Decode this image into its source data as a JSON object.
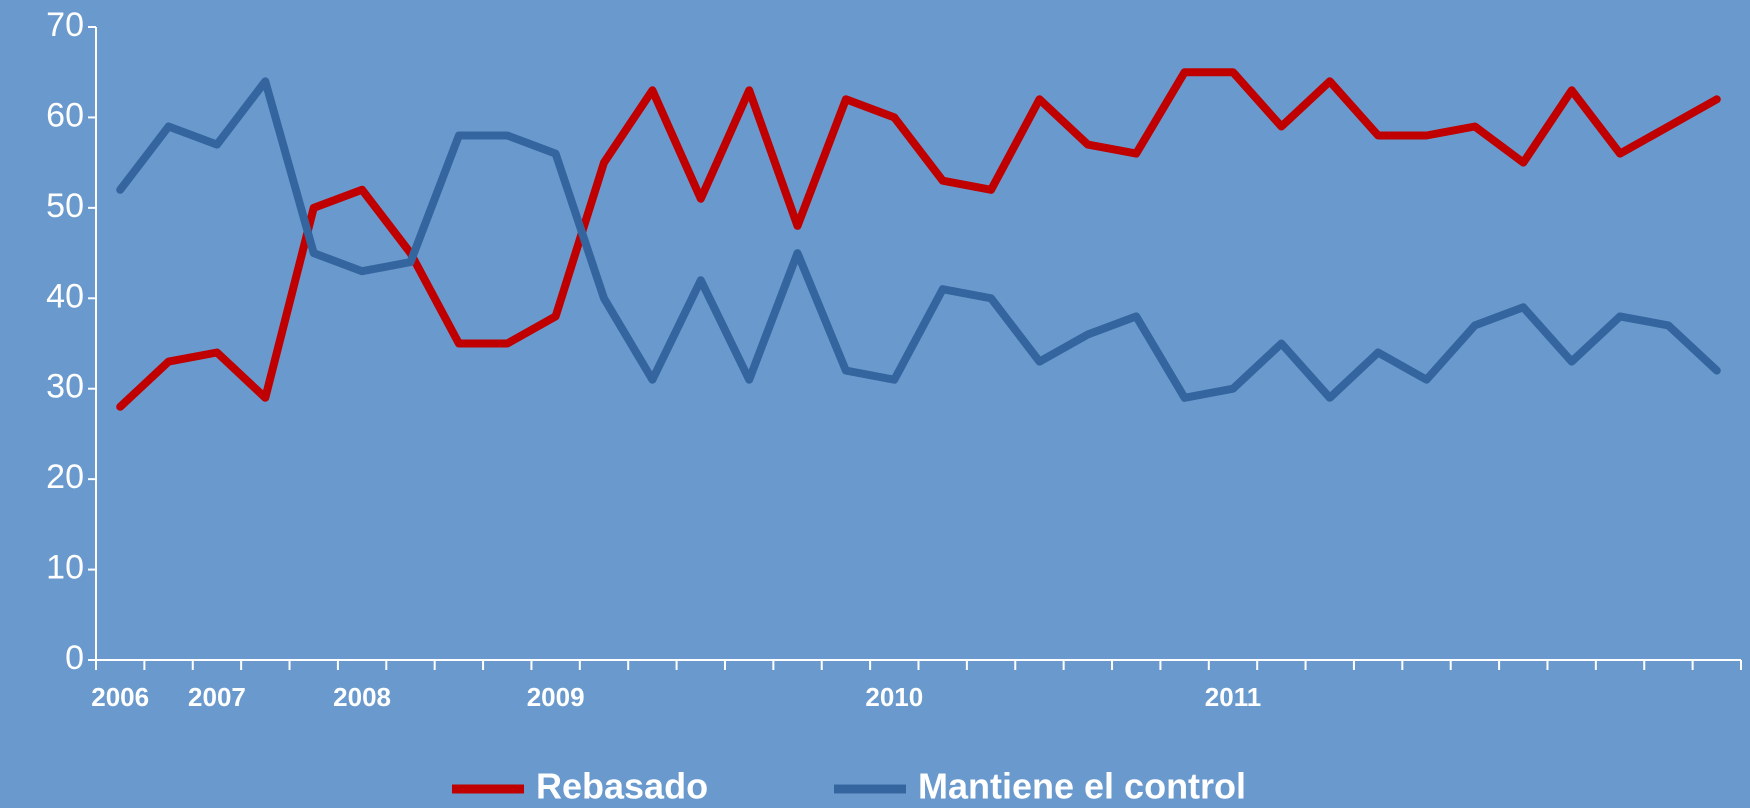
{
  "chart_data": {
    "type": "line",
    "categories": [
      "2006",
      null,
      "2007",
      null,
      null,
      "2008",
      null,
      null,
      null,
      "2009",
      null,
      null,
      null,
      null,
      null,
      null,
      "2010",
      null,
      null,
      null,
      null,
      null,
      null,
      "2011",
      null,
      null,
      null,
      null,
      null,
      null,
      null,
      null,
      null,
      null
    ],
    "series": [
      {
        "name": "Rebasado",
        "color": "#c00000",
        "values": [
          28,
          33,
          34,
          29,
          50,
          52,
          45,
          35,
          35,
          38,
          55,
          63,
          51,
          63,
          48,
          62,
          60,
          53,
          52,
          62,
          57,
          56,
          65,
          65,
          59,
          64,
          58,
          58,
          59,
          55,
          63,
          56,
          59,
          62
        ]
      },
      {
        "name": "Mantiene el control",
        "color": "#35659e",
        "values": [
          52,
          59,
          57,
          64,
          45,
          43,
          44,
          58,
          58,
          56,
          40,
          31,
          42,
          31,
          45,
          32,
          31,
          41,
          40,
          33,
          36,
          38,
          29,
          30,
          35,
          29,
          34,
          31,
          37,
          39,
          33,
          38,
          37,
          32
        ]
      }
    ],
    "ylim": [
      0,
      70
    ],
    "yticks": [
      0,
      10,
      20,
      30,
      40,
      50,
      60,
      70
    ],
    "grid": false,
    "legend": "bottom"
  }
}
